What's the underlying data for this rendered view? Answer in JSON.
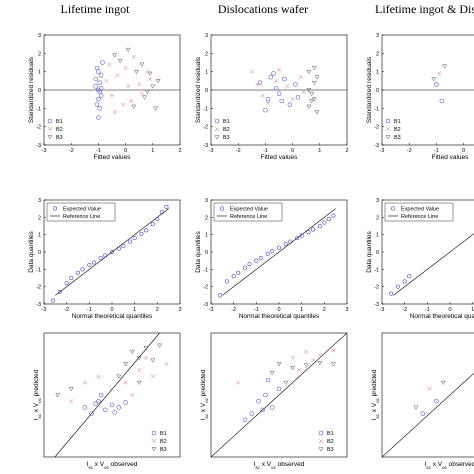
{
  "panel_titles": [
    "Lifetime ingot",
    "Dislocations wafer",
    "Lifetime ingot & Dislocations wafer"
  ],
  "row_labels": {
    "residuals": {
      "xlabel": "Fitted values",
      "ylabel": "Standardized residuals"
    },
    "qq": {
      "xlabel": "Normal theoretical quantiles",
      "ylabel": "Data quantiles"
    },
    "pred": {
      "xlabel": "I_sc x V_oc observed",
      "ylabel": "I_sc x V_oc predicted"
    }
  },
  "legends": {
    "groups": [
      "B1",
      "B2",
      "B3"
    ],
    "qq": [
      "Expected Value",
      "Reference Line"
    ]
  },
  "colors": {
    "B1": "#3b3bd6",
    "B2": "#e0607a",
    "B3": "#555555",
    "qq_points": "#1414c8",
    "ref_line": "#000000"
  },
  "chart_data": [
    {
      "type": "scatter",
      "panel": "residuals",
      "column": "Lifetime ingot",
      "xlabel": "Fitted values",
      "ylabel": "Standardized residuals",
      "xlim": [
        -3,
        2
      ],
      "ylim": [
        -3,
        3
      ],
      "xticks": [
        "-3",
        "-2",
        "-1",
        "0",
        "1",
        "2"
      ],
      "yticks": [
        "-3",
        "-2",
        "-1",
        "0",
        "1",
        "2",
        "3"
      ],
      "legend": [
        "B1",
        "B2",
        "B3"
      ],
      "legend_loc": "bottom-left",
      "series": [
        {
          "name": "B1",
          "points": [
            [
              -1.1,
              0.2
            ],
            [
              -1.0,
              -0.5
            ],
            [
              -0.9,
              0.8
            ],
            [
              -1.05,
              1.2
            ],
            [
              -0.95,
              -1.0
            ],
            [
              -1.0,
              0.0
            ],
            [
              -0.9,
              -0.3
            ],
            [
              -1.1,
              0.6
            ],
            [
              -0.85,
              1.5
            ],
            [
              -1.0,
              -1.5
            ],
            [
              -0.95,
              0.4
            ],
            [
              -1.05,
              -0.8
            ],
            [
              -0.9,
              0.1
            ],
            [
              -1.0,
              1.0
            ],
            [
              -0.95,
              -0.1
            ]
          ]
        },
        {
          "name": "B2",
          "points": [
            [
              -0.6,
              1.4
            ],
            [
              -0.3,
              0.8
            ],
            [
              0.0,
              1.2
            ],
            [
              0.2,
              -0.6
            ],
            [
              0.5,
              0.3
            ],
            [
              -0.4,
              -1.2
            ],
            [
              0.8,
              1.0
            ],
            [
              -0.7,
              0.5
            ],
            [
              0.3,
              1.8
            ],
            [
              0.6,
              -0.2
            ],
            [
              -0.1,
              -0.8
            ],
            [
              0.9,
              0.6
            ],
            [
              -0.5,
              -0.3
            ],
            [
              0.1,
              0.2
            ]
          ]
        },
        {
          "name": "B3",
          "points": [
            [
              -0.2,
              1.6
            ],
            [
              0.1,
              2.2
            ],
            [
              0.4,
              1.0
            ],
            [
              0.7,
              -0.4
            ],
            [
              0.9,
              0.9
            ],
            [
              1.1,
              -1.0
            ],
            [
              -0.4,
              1.9
            ],
            [
              0.3,
              -0.9
            ],
            [
              0.6,
              1.4
            ],
            [
              1.0,
              0.2
            ],
            [
              0.8,
              -0.1
            ],
            [
              1.2,
              0.5
            ]
          ]
        }
      ]
    },
    {
      "type": "scatter",
      "panel": "residuals",
      "column": "Dislocations wafer",
      "xlabel": "Fitted values",
      "ylabel": "Standardized residuals",
      "xlim": [
        -3,
        2
      ],
      "ylim": [
        -3,
        3
      ],
      "xticks": [
        "-3",
        "-2",
        "-1",
        "0",
        "1",
        "2"
      ],
      "yticks": [
        "-3",
        "-2",
        "-1",
        "0",
        "1",
        "2",
        "3"
      ],
      "legend": [
        "B1",
        "B2",
        "B3"
      ],
      "legend_loc": "bottom-left",
      "series": [
        {
          "name": "B1",
          "points": [
            [
              -1.2,
              0.4
            ],
            [
              -0.9,
              -0.5
            ],
            [
              -0.7,
              0.9
            ],
            [
              -0.5,
              -0.2
            ],
            [
              -0.3,
              0.6
            ],
            [
              -0.1,
              -0.8
            ],
            [
              0.1,
              0.3
            ],
            [
              -1.0,
              -1.1
            ],
            [
              -0.6,
              0.1
            ],
            [
              0.2,
              -0.4
            ],
            [
              -0.8,
              0.7
            ],
            [
              -0.4,
              -0.6
            ]
          ]
        },
        {
          "name": "B2",
          "points": [
            [
              -1.5,
              1.0
            ],
            [
              -1.1,
              -0.3
            ],
            [
              -0.6,
              0.5
            ],
            [
              -0.2,
              0.2
            ],
            [
              0.0,
              -0.5
            ],
            [
              0.3,
              0.7
            ],
            [
              -0.9,
              -0.7
            ],
            [
              -1.3,
              0.3
            ],
            [
              0.4,
              -0.1
            ],
            [
              -0.5,
              1.1
            ]
          ]
        },
        {
          "name": "B3",
          "points": [
            [
              0.6,
              1.0
            ],
            [
              0.7,
              -0.6
            ],
            [
              0.8,
              0.4
            ],
            [
              0.9,
              -1.2
            ],
            [
              0.6,
              0.0
            ],
            [
              0.8,
              1.2
            ],
            [
              0.7,
              -0.2
            ],
            [
              0.9,
              0.7
            ],
            [
              0.6,
              -0.9
            ],
            [
              0.8,
              -0.5
            ]
          ]
        }
      ]
    },
    {
      "type": "scatter",
      "panel": "residuals",
      "column": "Lifetime ingot & Dislocations wafer",
      "xlabel": "Fitted values",
      "ylabel": "Standardized residuals",
      "xlim": [
        -3,
        2
      ],
      "ylim": [
        -3,
        3
      ],
      "xticks": [
        "-3",
        "-2",
        "-1",
        "0",
        "1",
        "2"
      ],
      "yticks": [
        "-3",
        "-2",
        "-1",
        "0",
        "1",
        "2",
        "3"
      ],
      "legend": [
        "B1",
        "B2",
        "B3"
      ],
      "legend_loc": "bottom-left",
      "series": [
        {
          "name": "B1",
          "points": [
            [
              -1.0,
              0.3
            ],
            [
              -0.8,
              -0.6
            ]
          ]
        },
        {
          "name": "B2",
          "points": [
            [
              -0.9,
              0.9
            ]
          ]
        },
        {
          "name": "B3",
          "points": [
            [
              -1.1,
              0.6
            ],
            [
              -0.7,
              1.3
            ]
          ]
        }
      ]
    },
    {
      "type": "scatter",
      "panel": "qq",
      "column": "Lifetime ingot",
      "xlabel": "Normal theoretical quantiles",
      "ylabel": "Data quantiles",
      "xlim": [
        -3,
        3
      ],
      "ylim": [
        -3,
        3
      ],
      "xticks": [
        "-3",
        "-2",
        "-1",
        "0",
        "1",
        "2",
        "3"
      ],
      "yticks": [
        "-3",
        "-2",
        "-1",
        "0",
        "1",
        "2",
        "3"
      ],
      "legend": [
        "Expected Value",
        "Reference Line"
      ],
      "legend_loc": "top-left",
      "reference_line": [
        [
          -2.5,
          -2.5
        ],
        [
          2.5,
          2.5
        ]
      ],
      "points": [
        [
          -2.6,
          -2.8
        ],
        [
          -2.3,
          -2.3
        ],
        [
          -2.0,
          -1.8
        ],
        [
          -1.8,
          -1.5
        ],
        [
          -1.5,
          -1.2
        ],
        [
          -1.3,
          -1.0
        ],
        [
          -1.0,
          -0.75
        ],
        [
          -0.8,
          -0.6
        ],
        [
          -0.5,
          -0.35
        ],
        [
          -0.3,
          -0.2
        ],
        [
          0.0,
          0.0
        ],
        [
          0.3,
          0.2
        ],
        [
          0.5,
          0.35
        ],
        [
          0.8,
          0.6
        ],
        [
          1.0,
          0.8
        ],
        [
          1.3,
          1.05
        ],
        [
          1.5,
          1.25
        ],
        [
          1.8,
          1.6
        ],
        [
          2.0,
          1.9
        ],
        [
          2.2,
          2.3
        ],
        [
          2.4,
          2.6
        ]
      ]
    },
    {
      "type": "scatter",
      "panel": "qq",
      "column": "Dislocations wafer",
      "xlabel": "Normal theoretical quantiles",
      "ylabel": "Data quantiles",
      "xlim": [
        -3,
        3
      ],
      "ylim": [
        -3,
        3
      ],
      "xticks": [
        "-3",
        "-2",
        "-1",
        "0",
        "1",
        "2",
        "3"
      ],
      "yticks": [
        "-3",
        "-2",
        "-1",
        "0",
        "1",
        "2",
        "3"
      ],
      "legend": [
        "Expected Value",
        "Reference Line"
      ],
      "legend_loc": "top-left",
      "reference_line": [
        [
          -2.5,
          -2.5
        ],
        [
          2.5,
          2.5
        ]
      ],
      "points": [
        [
          -2.6,
          -2.5
        ],
        [
          -2.3,
          -1.7
        ],
        [
          -2.0,
          -1.4
        ],
        [
          -1.8,
          -1.2
        ],
        [
          -1.5,
          -0.9
        ],
        [
          -1.3,
          -0.7
        ],
        [
          -1.0,
          -0.5
        ],
        [
          -0.8,
          -0.35
        ],
        [
          -0.5,
          -0.1
        ],
        [
          -0.3,
          0.05
        ],
        [
          0.0,
          0.25
        ],
        [
          0.3,
          0.45
        ],
        [
          0.5,
          0.6
        ],
        [
          0.8,
          0.8
        ],
        [
          1.0,
          0.95
        ],
        [
          1.3,
          1.15
        ],
        [
          1.5,
          1.3
        ],
        [
          1.8,
          1.5
        ],
        [
          2.0,
          1.7
        ],
        [
          2.2,
          1.9
        ],
        [
          2.4,
          2.1
        ]
      ]
    },
    {
      "type": "scatter",
      "panel": "qq",
      "column": "Lifetime ingot & Dislocations wafer",
      "xlabel": "Normal theoretical quantiles",
      "ylabel": "Data quantiles",
      "xlim": [
        -3,
        3
      ],
      "ylim": [
        -3,
        3
      ],
      "xticks": [
        "-3",
        "-2",
        "-1",
        "0",
        "1",
        "2",
        "3"
      ],
      "yticks": [
        "-3",
        "-2",
        "-1",
        "0",
        "1",
        "2",
        "3"
      ],
      "legend": [
        "Expected Value",
        "Reference Line"
      ],
      "legend_loc": "top-left",
      "reference_line": [
        [
          -2.5,
          -2.5
        ],
        [
          2.5,
          2.5
        ]
      ],
      "points": [
        [
          -2.6,
          -2.4
        ],
        [
          -2.3,
          -2.0
        ],
        [
          -2.0,
          -1.7
        ],
        [
          -1.8,
          -1.4
        ]
      ]
    },
    {
      "type": "scatter",
      "panel": "pred",
      "column": "Lifetime ingot",
      "xlabel": "I_sc x V_oc observed",
      "ylabel": "I_sc x V_oc predicted",
      "xlim": [
        0,
        1
      ],
      "ylim": [
        0,
        1
      ],
      "legend": [
        "B1",
        "B2",
        "B3"
      ],
      "legend_loc": "bottom-right",
      "reference_line": [
        [
          0.08,
          0.0
        ],
        [
          0.85,
          1.0
        ]
      ],
      "series": [
        {
          "name": "B1",
          "points": [
            [
              0.3,
              0.4
            ],
            [
              0.4,
              0.45
            ],
            [
              0.45,
              0.38
            ],
            [
              0.5,
              0.42
            ],
            [
              0.55,
              0.4
            ],
            [
              0.35,
              0.35
            ],
            [
              0.6,
              0.44
            ],
            [
              0.42,
              0.5
            ],
            [
              0.52,
              0.36
            ],
            [
              0.38,
              0.43
            ]
          ]
        },
        {
          "name": "B2",
          "points": [
            [
              0.2,
              0.45
            ],
            [
              0.6,
              0.6
            ],
            [
              0.7,
              0.7
            ],
            [
              0.8,
              0.65
            ],
            [
              0.5,
              0.55
            ],
            [
              0.9,
              0.75
            ],
            [
              0.65,
              0.5
            ],
            [
              0.3,
              0.6
            ],
            [
              0.75,
              0.8
            ],
            [
              0.4,
              0.65
            ]
          ]
        },
        {
          "name": "B3",
          "points": [
            [
              0.65,
              0.85
            ],
            [
              0.7,
              0.8
            ],
            [
              0.75,
              0.88
            ],
            [
              0.8,
              0.78
            ],
            [
              0.6,
              0.75
            ],
            [
              0.85,
              0.9
            ],
            [
              0.55,
              0.65
            ],
            [
              0.7,
              0.6
            ],
            [
              0.2,
              0.55
            ],
            [
              0.1,
              0.5
            ]
          ]
        }
      ]
    },
    {
      "type": "scatter",
      "panel": "pred",
      "column": "Dislocations wafer",
      "xlabel": "I_sc x V_oc observed",
      "ylabel": "I_sc x V_oc predicted",
      "xlim": [
        0,
        1
      ],
      "ylim": [
        0,
        1
      ],
      "legend": [
        "B1",
        "B2",
        "B3"
      ],
      "legend_loc": "bottom-right",
      "reference_line": [
        [
          0.0,
          0.0
        ],
        [
          1.0,
          1.0
        ]
      ],
      "series": [
        {
          "name": "B1",
          "points": [
            [
              0.3,
              0.35
            ],
            [
              0.35,
              0.45
            ],
            [
              0.4,
              0.5
            ],
            [
              0.45,
              0.4
            ],
            [
              0.5,
              0.55
            ],
            [
              0.25,
              0.3
            ],
            [
              0.42,
              0.62
            ],
            [
              0.38,
              0.38
            ]
          ]
        },
        {
          "name": "B2",
          "points": [
            [
              0.6,
              0.8
            ],
            [
              0.7,
              0.85
            ],
            [
              0.8,
              0.82
            ],
            [
              0.9,
              0.86
            ],
            [
              0.65,
              0.7
            ],
            [
              0.2,
              0.6
            ],
            [
              0.75,
              0.78
            ]
          ]
        },
        {
          "name": "B3",
          "points": [
            [
              0.5,
              0.75
            ],
            [
              0.6,
              0.72
            ],
            [
              0.7,
              0.74
            ],
            [
              0.8,
              0.76
            ],
            [
              0.9,
              0.75
            ],
            [
              0.55,
              0.6
            ],
            [
              0.45,
              0.68
            ]
          ]
        }
      ]
    },
    {
      "type": "scatter",
      "panel": "pred",
      "column": "Lifetime ingot & Dislocations wafer",
      "xlabel": "I_sc x V_oc observed",
      "ylabel": "I_sc x V_oc predicted",
      "xlim": [
        0,
        1
      ],
      "ylim": [
        0,
        1
      ],
      "legend": [
        "B1",
        "B2",
        "B3"
      ],
      "legend_loc": "bottom-right",
      "reference_line": [
        [
          0.0,
          0.0
        ],
        [
          1.0,
          1.0
        ]
      ],
      "series": [
        {
          "name": "B1",
          "points": [
            [
              0.3,
              0.35
            ],
            [
              0.4,
              0.45
            ]
          ]
        },
        {
          "name": "B2",
          "points": [
            [
              0.35,
              0.55
            ]
          ]
        },
        {
          "name": "B3",
          "points": [
            [
              0.25,
              0.4
            ],
            [
              0.45,
              0.6
            ]
          ]
        }
      ]
    }
  ]
}
